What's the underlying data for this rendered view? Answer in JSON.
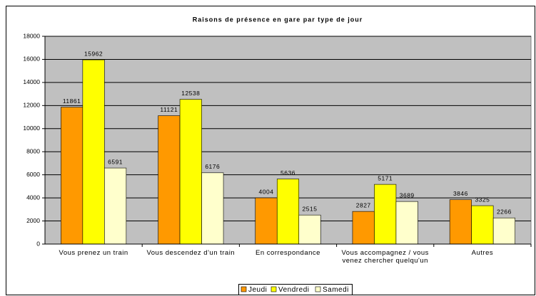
{
  "chart_data": {
    "type": "bar",
    "title": "Raisons de présence en gare par type de jour",
    "categories": [
      "Vous prenez un train",
      "Vous descendez d'un train",
      "En correspondance",
      "Vous accompagnez / vous venez chercher quelqu'un",
      "Autres"
    ],
    "series": [
      {
        "name": "Jeudi",
        "color": "#ff9900",
        "values": [
          11861,
          11121,
          4004,
          2827,
          3846
        ]
      },
      {
        "name": "Vendredi",
        "color": "#ffff00",
        "values": [
          15962,
          12538,
          5636,
          5171,
          3325
        ]
      },
      {
        "name": "Samedi",
        "color": "#ffffcc",
        "values": [
          6591,
          6176,
          2515,
          3689,
          2266
        ]
      }
    ],
    "ylim": [
      0,
      18000
    ],
    "yticks": [
      0,
      2000,
      4000,
      6000,
      8000,
      10000,
      12000,
      14000,
      16000,
      18000
    ],
    "grid": true,
    "plot_background": "#c0c0c0",
    "legend": "bottom"
  }
}
